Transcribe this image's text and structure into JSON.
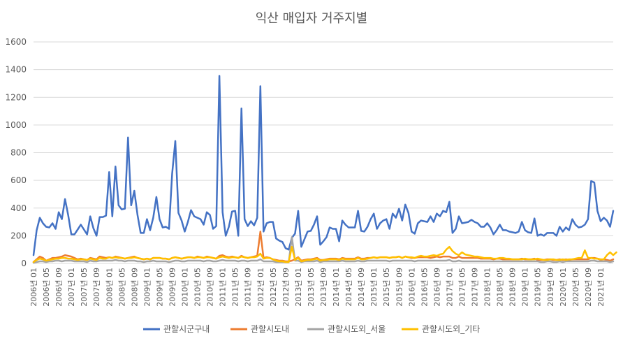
{
  "chart_data": {
    "type": "line",
    "title": "익산 매입자 거주지별",
    "xlabel": "",
    "ylabel": "",
    "ylim": [
      0,
      1600
    ],
    "yticks": [
      0,
      200,
      400,
      600,
      800,
      1000,
      1200,
      1400,
      1600
    ],
    "grid": true,
    "legend_position": "bottom",
    "x_ticks": [
      "2006년 01",
      "2006년 05",
      "2006년 09",
      "2007년 01",
      "2007년 05",
      "2007년 09",
      "2008년 01",
      "2008년 05",
      "2008년 09",
      "2009년 01",
      "2009년 05",
      "2009년 09",
      "2010년 01",
      "2010년 05",
      "2010년 09",
      "2011년 01",
      "2011년 05",
      "2011년 09",
      "2012년 01",
      "2012년 05",
      "2012년 09",
      "2013년 01",
      "2013년 05",
      "2013년 09",
      "2014년 01",
      "2014년 05",
      "2014년 09",
      "2015년 01",
      "2015년 05",
      "2015년 09",
      "2016년 01",
      "2016년 05",
      "2016년 09",
      "2017년 01",
      "2017년 05",
      "2017년 09",
      "2018년 01",
      "2018년 05",
      "2018년 09",
      "2019년 01",
      "2019년 05",
      "2019년 09",
      "2020년 01",
      "2020년 05",
      "2020년 09",
      "2021년 01"
    ],
    "series": [
      {
        "name": "관할시군구내",
        "color": "#4472C4",
        "values": [
          60,
          240,
          330,
          290,
          265,
          260,
          290,
          250,
          370,
          320,
          465,
          350,
          210,
          210,
          245,
          280,
          245,
          210,
          340,
          255,
          200,
          335,
          335,
          345,
          660,
          340,
          700,
          420,
          390,
          395,
          910,
          420,
          525,
          350,
          220,
          220,
          320,
          240,
          330,
          480,
          320,
          260,
          265,
          250,
          650,
          885,
          365,
          310,
          230,
          300,
          385,
          340,
          330,
          320,
          280,
          370,
          350,
          250,
          270,
          1355,
          370,
          200,
          265,
          375,
          380,
          200,
          1120,
          320,
          270,
          305,
          275,
          330,
          1280,
          230,
          290,
          300,
          300,
          180,
          165,
          155,
          110,
          100,
          185,
          215,
          380,
          120,
          175,
          230,
          235,
          280,
          340,
          135,
          160,
          190,
          260,
          250,
          250,
          160,
          310,
          280,
          260,
          260,
          260,
          380,
          235,
          230,
          265,
          320,
          360,
          250,
          290,
          310,
          320,
          250,
          360,
          330,
          395,
          310,
          425,
          365,
          230,
          215,
          290,
          310,
          305,
          300,
          340,
          300,
          360,
          340,
          380,
          370,
          445,
          220,
          250,
          340,
          290,
          295,
          300,
          315,
          300,
          290,
          265,
          265,
          290,
          260,
          210,
          240,
          280,
          240,
          240,
          230,
          225,
          220,
          230,
          300,
          240,
          225,
          220,
          325,
          200,
          210,
          200,
          220,
          220,
          220,
          200,
          265,
          230,
          260,
          240,
          320,
          280,
          260,
          265,
          280,
          320,
          595,
          585,
          380,
          305,
          330,
          310,
          265,
          380
        ]
      },
      {
        "name": "관할시도내",
        "color": "#ED7D31",
        "values": [
          10,
          30,
          50,
          40,
          20,
          30,
          40,
          40,
          45,
          50,
          60,
          55,
          50,
          40,
          30,
          35,
          30,
          25,
          40,
          35,
          30,
          50,
          45,
          40,
          45,
          40,
          50,
          45,
          40,
          35,
          40,
          45,
          50,
          40,
          35,
          30,
          35,
          30,
          40,
          40,
          40,
          35,
          35,
          30,
          40,
          45,
          40,
          35,
          40,
          45,
          45,
          40,
          50,
          45,
          40,
          50,
          45,
          40,
          35,
          55,
          60,
          50,
          45,
          50,
          45,
          40,
          55,
          45,
          40,
          45,
          50,
          55,
          230,
          40,
          45,
          40,
          30,
          25,
          20,
          20,
          15,
          15,
          20,
          30,
          45,
          20,
          25,
          30,
          30,
          35,
          40,
          25,
          25,
          30,
          35,
          35,
          35,
          30,
          40,
          35,
          35,
          35,
          35,
          45,
          35,
          35,
          40,
          40,
          45,
          40,
          45,
          45,
          45,
          40,
          45,
          45,
          50,
          40,
          50,
          45,
          40,
          40,
          45,
          45,
          45,
          45,
          40,
          45,
          50,
          45,
          50,
          50,
          50,
          40,
          40,
          50,
          40,
          40,
          40,
          40,
          40,
          40,
          35,
          35,
          35,
          35,
          30,
          35,
          35,
          30,
          30,
          30,
          30,
          30,
          30,
          35,
          30,
          30,
          30,
          35,
          25,
          25,
          25,
          30,
          30,
          25,
          25,
          30,
          25,
          30,
          25,
          30,
          30,
          30,
          30,
          30,
          30,
          40,
          40,
          35,
          25,
          30,
          25,
          20,
          30
        ]
      },
      {
        "name": "관할시도외_서울",
        "color": "#A5A5A5",
        "values": [
          5,
          10,
          15,
          15,
          10,
          15,
          15,
          20,
          20,
          15,
          20,
          20,
          20,
          15,
          15,
          15,
          15,
          10,
          20,
          15,
          15,
          20,
          20,
          20,
          20,
          20,
          25,
          20,
          20,
          15,
          20,
          20,
          20,
          15,
          15,
          10,
          15,
          15,
          20,
          15,
          15,
          15,
          15,
          10,
          15,
          20,
          20,
          15,
          15,
          20,
          20,
          20,
          20,
          20,
          15,
          20,
          20,
          15,
          15,
          20,
          25,
          20,
          20,
          20,
          20,
          15,
          20,
          20,
          15,
          20,
          20,
          20,
          30,
          15,
          15,
          15,
          15,
          10,
          10,
          10,
          10,
          10,
          190,
          20,
          20,
          10,
          15,
          15,
          15,
          15,
          20,
          10,
          15,
          15,
          15,
          15,
          15,
          15,
          20,
          15,
          15,
          15,
          15,
          20,
          15,
          15,
          20,
          20,
          20,
          20,
          20,
          20,
          20,
          15,
          20,
          20,
          20,
          20,
          20,
          20,
          20,
          15,
          20,
          20,
          20,
          20,
          20,
          20,
          20,
          20,
          20,
          20,
          25,
          15,
          15,
          20,
          15,
          15,
          15,
          15,
          15,
          15,
          15,
          15,
          15,
          15,
          15,
          15,
          15,
          15,
          15,
          15,
          15,
          15,
          15,
          15,
          15,
          15,
          15,
          15,
          15,
          10,
          10,
          15,
          15,
          10,
          10,
          15,
          10,
          15,
          15,
          15,
          15,
          15,
          15,
          15,
          15,
          20,
          20,
          15,
          15,
          15,
          15,
          10,
          15
        ]
      },
      {
        "name": "관할시도외_기타",
        "color": "#FFC000",
        "values": [
          10,
          25,
          35,
          30,
          20,
          25,
          30,
          35,
          35,
          40,
          40,
          35,
          35,
          30,
          25,
          30,
          30,
          25,
          35,
          30,
          25,
          40,
          35,
          35,
          45,
          40,
          45,
          40,
          40,
          35,
          40,
          40,
          45,
          40,
          35,
          30,
          35,
          30,
          40,
          40,
          40,
          35,
          35,
          30,
          40,
          45,
          40,
          35,
          40,
          45,
          45,
          40,
          45,
          45,
          40,
          45,
          45,
          40,
          35,
          45,
          50,
          45,
          40,
          45,
          45,
          40,
          50,
          45,
          40,
          45,
          45,
          50,
          70,
          35,
          40,
          40,
          30,
          20,
          15,
          15,
          10,
          10,
          120,
          25,
          40,
          15,
          20,
          25,
          25,
          30,
          35,
          20,
          25,
          25,
          30,
          30,
          30,
          25,
          35,
          30,
          30,
          30,
          30,
          40,
          30,
          30,
          35,
          40,
          45,
          40,
          45,
          45,
          45,
          40,
          45,
          45,
          50,
          40,
          50,
          45,
          45,
          40,
          50,
          55,
          50,
          50,
          55,
          60,
          55,
          65,
          70,
          100,
          120,
          90,
          70,
          60,
          80,
          65,
          60,
          55,
          50,
          50,
          45,
          40,
          40,
          40,
          35,
          35,
          40,
          40,
          35,
          35,
          30,
          30,
          30,
          30,
          35,
          30,
          30,
          30,
          35,
          30,
          25,
          25,
          30,
          30,
          25,
          25,
          30,
          25,
          30,
          30,
          35,
          40,
          40,
          95,
          40,
          40,
          35,
          35,
          30,
          30,
          60,
          80,
          60,
          80
        ]
      }
    ]
  }
}
